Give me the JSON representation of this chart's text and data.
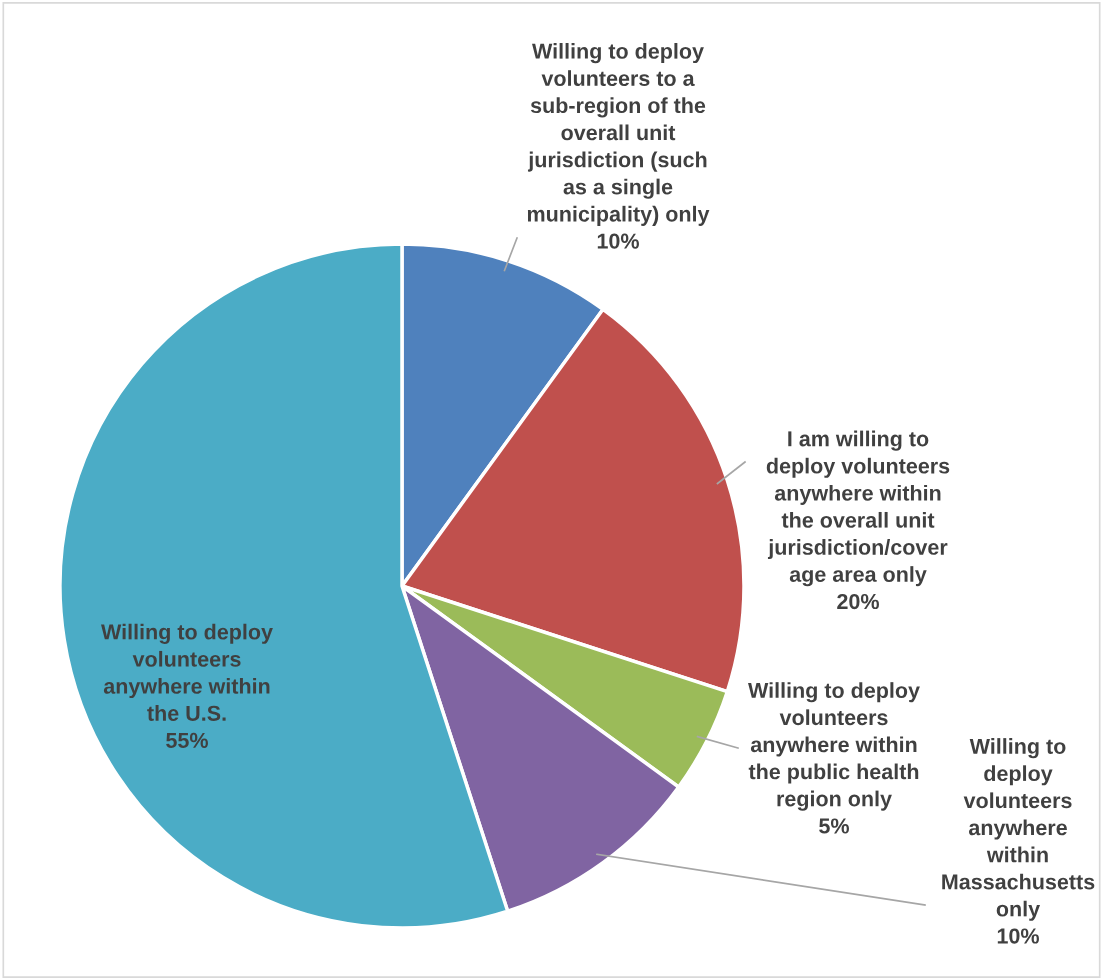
{
  "chart_data": {
    "type": "pie",
    "categories": [
      "Willing to deploy\nvolunteers to a\nsub-region of the\noverall unit\njurisdiction (such\nas a single\nmunicipality) only",
      "I am willing to\ndeploy volunteers\nanywhere within\nthe overall unit\njurisdiction/cover\nage area only",
      "Willing to deploy\nvolunteers\nanywhere within\nthe public health\nregion only",
      "Willing to\ndeploy\nvolunteers\nanywhere\nwithin\nMassachusetts\nonly",
      "Willing to deploy\nvolunteers\nanywhere within\nthe U.S."
    ],
    "values": [
      10,
      20,
      5,
      10,
      55
    ],
    "value_labels": [
      "10%",
      "20%",
      "5%",
      "10%",
      "55%"
    ],
    "colors": [
      "#4f81bd",
      "#c0504d",
      "#9bbb59",
      "#8064a2",
      "#4bacc6"
    ],
    "legend": false
  }
}
